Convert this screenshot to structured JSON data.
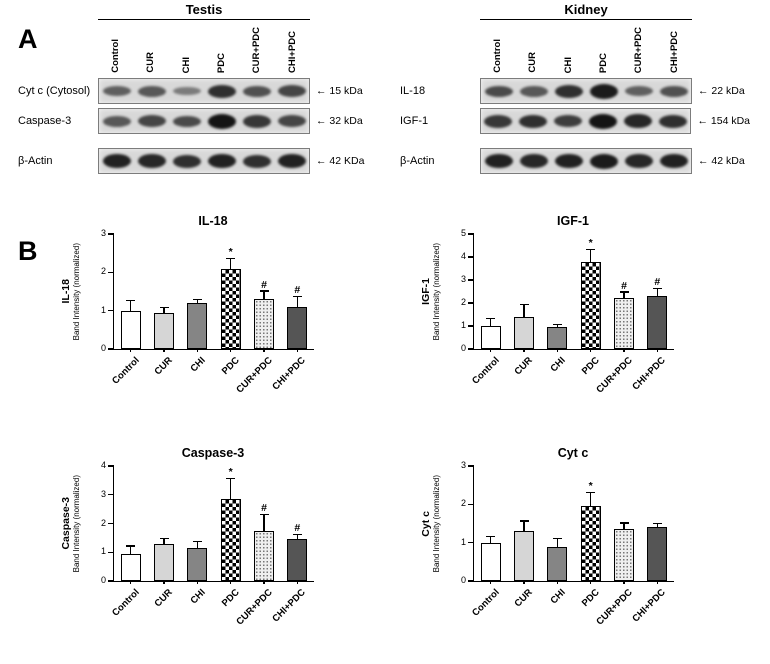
{
  "panel_a_label": "A",
  "panel_b_label": "B",
  "blot_panels": [
    {
      "title": "Testis",
      "lanes": [
        "Control",
        "CUR",
        "CHI",
        "PDC",
        "CUR+PDC",
        "CHI+PDC"
      ],
      "rows": [
        {
          "label": "Cyt c (Cytosol)",
          "kda": "← 15 kDa",
          "intensities": [
            0.45,
            0.5,
            0.25,
            0.8,
            0.55,
            0.65
          ]
        },
        {
          "label": "Caspase-3",
          "kda": "← 32 kDa",
          "intensities": [
            0.5,
            0.65,
            0.6,
            1.0,
            0.75,
            0.65
          ]
        },
        {
          "label": "β-Actin",
          "kda": "← 42 KDa",
          "intensities": [
            0.9,
            0.85,
            0.8,
            0.9,
            0.8,
            0.9
          ]
        }
      ]
    },
    {
      "title": "Kidney",
      "lanes": [
        "Control",
        "CUR",
        "CHI",
        "PDC",
        "CUR+PDC",
        "CHI+PDC"
      ],
      "rows": [
        {
          "label": "IL-18",
          "kda": "← 22 kDa",
          "intensities": [
            0.6,
            0.5,
            0.8,
            0.95,
            0.45,
            0.55
          ]
        },
        {
          "label": "IGF-1",
          "kda": "← 154 kDa",
          "intensities": [
            0.75,
            0.8,
            0.7,
            1.0,
            0.85,
            0.8
          ]
        },
        {
          "label": "β-Actin",
          "kda": "← 42 kDa",
          "intensities": [
            0.9,
            0.85,
            0.9,
            0.95,
            0.85,
            0.9
          ]
        }
      ]
    }
  ],
  "chart_data": [
    {
      "type": "bar",
      "title": "IL-18",
      "ylabel_main": "IL-18",
      "ylabel_sub": "Band Intensity (normalized)",
      "categories": [
        "Control",
        "CUR",
        "CHI",
        "PDC",
        "CUR+PDC",
        "CHI+PDC"
      ],
      "values": [
        1.0,
        0.95,
        1.2,
        2.1,
        1.3,
        1.1
      ],
      "errors": [
        0.25,
        0.12,
        0.08,
        0.25,
        0.2,
        0.25
      ],
      "annotations": [
        "",
        "",
        "",
        "*",
        "#",
        "#"
      ],
      "ylim": [
        0,
        3
      ],
      "yticks": [
        0,
        1,
        2,
        3
      ]
    },
    {
      "type": "bar",
      "title": "IGF-1",
      "ylabel_main": "IGF-1",
      "ylabel_sub": "Band Intensity (normalized)",
      "categories": [
        "Control",
        "CUR",
        "CHI",
        "PDC",
        "CUR+PDC",
        "CHI+PDC"
      ],
      "values": [
        1.0,
        1.4,
        0.95,
        3.8,
        2.2,
        2.3
      ],
      "errors": [
        0.3,
        0.5,
        0.1,
        0.5,
        0.25,
        0.3
      ],
      "annotations": [
        "",
        "",
        "",
        "*",
        "#",
        "#"
      ],
      "ylim": [
        0,
        5
      ],
      "yticks": [
        0,
        1,
        2,
        3,
        4,
        5
      ]
    },
    {
      "type": "bar",
      "title": "Caspase-3",
      "ylabel_main": "Caspase-3",
      "ylabel_sub": "Band Intensity (normalized)",
      "categories": [
        "Control",
        "CUR",
        "CHI",
        "PDC",
        "CUR+PDC",
        "CHI+PDC"
      ],
      "values": [
        0.95,
        1.3,
        1.15,
        2.85,
        1.75,
        1.45
      ],
      "errors": [
        0.25,
        0.15,
        0.2,
        0.7,
        0.55,
        0.15
      ],
      "annotations": [
        "",
        "",
        "",
        "*",
        "#",
        "#"
      ],
      "ylim": [
        0,
        4
      ],
      "yticks": [
        0,
        1,
        2,
        3,
        4
      ]
    },
    {
      "type": "bar",
      "title": "Cyt c",
      "ylabel_main": "Cyt c",
      "ylabel_sub": "Band Intensity (normalized)",
      "categories": [
        "Control",
        "CUR",
        "CHI",
        "PDC",
        "CUR+PDC",
        "CHI+PDC"
      ],
      "values": [
        1.0,
        1.3,
        0.9,
        1.95,
        1.35,
        1.4
      ],
      "errors": [
        0.15,
        0.25,
        0.2,
        0.35,
        0.15,
        0.08
      ],
      "annotations": [
        "",
        "",
        "",
        "*",
        "",
        ""
      ],
      "ylim": [
        0,
        3
      ],
      "yticks": [
        0,
        1,
        2,
        3
      ]
    }
  ]
}
